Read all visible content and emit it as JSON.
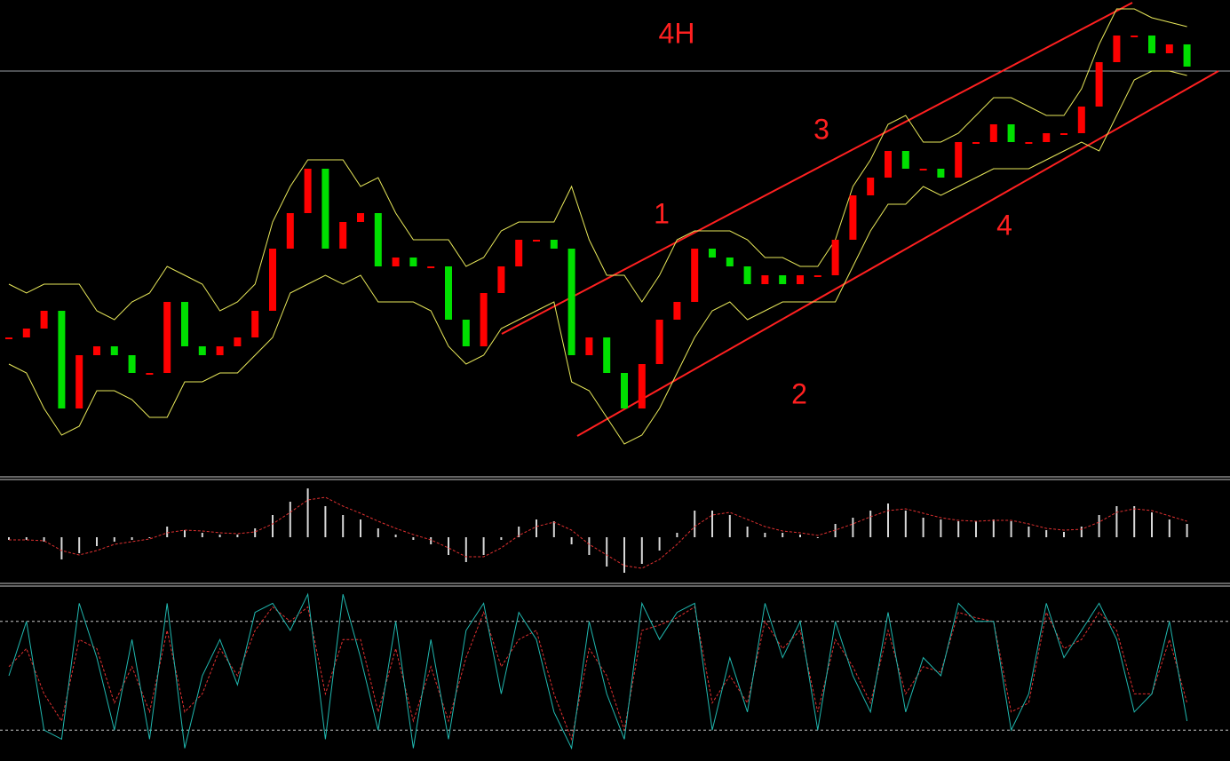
{
  "chart_data": [
    {
      "type": "candlestick",
      "title": "4H",
      "annotations": [
        "1",
        "2",
        "3",
        "4"
      ],
      "ylim": [
        0,
        535
      ],
      "up_color": "#ff0000",
      "down_color": "#00e000",
      "band_color": "#e8e85a",
      "channel_color": "#ff2020",
      "values": [
        155,
        165,
        185,
        75,
        135,
        145,
        135,
        115,
        115,
        195,
        145,
        135,
        145,
        155,
        185,
        255,
        295,
        345,
        255,
        285,
        295,
        235,
        245,
        235,
        235,
        175,
        145,
        205,
        235,
        265,
        265,
        255,
        135,
        155,
        115,
        75,
        125,
        175,
        195,
        255,
        245,
        235,
        215,
        225,
        215,
        225,
        225,
        265,
        315,
        335,
        365,
        345,
        345,
        335,
        375,
        375,
        395,
        375,
        375,
        385,
        385,
        415,
        465,
        495,
        495,
        475,
        485,
        460
      ],
      "upper_band": [
        215,
        205,
        215,
        215,
        215,
        185,
        175,
        195,
        205,
        235,
        225,
        215,
        185,
        195,
        215,
        285,
        325,
        355,
        355,
        355,
        325,
        335,
        295,
        265,
        265,
        265,
        235,
        245,
        275,
        285,
        285,
        285,
        325,
        265,
        225,
        225,
        195,
        225,
        265,
        275,
        275,
        275,
        265,
        245,
        245,
        235,
        235,
        265,
        325,
        355,
        395,
        405,
        375,
        375,
        385,
        405,
        425,
        425,
        415,
        405,
        405,
        435,
        485,
        525,
        525,
        515,
        510,
        505
      ],
      "lower_band": [
        125,
        115,
        75,
        45,
        55,
        95,
        95,
        85,
        65,
        65,
        105,
        105,
        115,
        115,
        135,
        155,
        205,
        215,
        225,
        215,
        225,
        195,
        195,
        195,
        185,
        145,
        125,
        135,
        165,
        175,
        185,
        195,
        105,
        95,
        65,
        35,
        45,
        75,
        115,
        155,
        185,
        195,
        175,
        185,
        195,
        195,
        195,
        195,
        235,
        275,
        305,
        305,
        325,
        315,
        325,
        335,
        345,
        345,
        345,
        355,
        365,
        375,
        365,
        405,
        445,
        455,
        455,
        450
      ]
    },
    {
      "type": "macd",
      "ylim": [
        -50,
        65
      ],
      "color": "#d8d8d8",
      "signal_color": "#e03030",
      "values": [
        -3,
        -3,
        -5,
        -25,
        -18,
        -10,
        -5,
        -3,
        0,
        12,
        8,
        5,
        3,
        3,
        10,
        25,
        40,
        55,
        35,
        25,
        20,
        10,
        3,
        -3,
        -8,
        -20,
        -28,
        -20,
        -3,
        12,
        20,
        18,
        -8,
        -20,
        -33,
        -40,
        -30,
        -15,
        5,
        30,
        30,
        25,
        12,
        5,
        5,
        3,
        0,
        15,
        22,
        30,
        38,
        30,
        22,
        20,
        18,
        18,
        20,
        18,
        12,
        8,
        6,
        12,
        25,
        35,
        35,
        28,
        20,
        15
      ],
      "signal": [
        -3,
        -3,
        -4,
        -15,
        -20,
        -15,
        -8,
        -5,
        -2,
        5,
        8,
        7,
        5,
        4,
        6,
        15,
        28,
        42,
        45,
        35,
        27,
        18,
        10,
        3,
        -3,
        -12,
        -22,
        -22,
        -12,
        2,
        12,
        17,
        8,
        -8,
        -20,
        -32,
        -35,
        -25,
        -8,
        12,
        25,
        28,
        20,
        12,
        7,
        5,
        2,
        8,
        15,
        23,
        30,
        32,
        27,
        22,
        19,
        18,
        19,
        19,
        15,
        10,
        8,
        9,
        17,
        28,
        32,
        30,
        24,
        18
      ]
    },
    {
      "type": "stochastic",
      "ylim": [
        0,
        100
      ],
      "levels": [
        20,
        80
      ],
      "color": "#20b8b0",
      "signal_color": "#e03030",
      "values": [
        50,
        80,
        20,
        15,
        90,
        60,
        20,
        70,
        15,
        90,
        10,
        50,
        70,
        45,
        85,
        90,
        75,
        95,
        15,
        95,
        60,
        20,
        80,
        10,
        70,
        15,
        75,
        90,
        40,
        85,
        70,
        30,
        10,
        80,
        40,
        15,
        90,
        70,
        85,
        90,
        20,
        60,
        30,
        90,
        60,
        80,
        20,
        80,
        50,
        30,
        85,
        30,
        60,
        50,
        90,
        80,
        80,
        20,
        40,
        90,
        60,
        75,
        90,
        70,
        30,
        40,
        80,
        25
      ],
      "signal": [
        55,
        65,
        40,
        25,
        70,
        65,
        35,
        55,
        30,
        75,
        30,
        40,
        65,
        50,
        75,
        88,
        80,
        88,
        40,
        70,
        70,
        30,
        65,
        25,
        55,
        25,
        60,
        85,
        55,
        70,
        75,
        40,
        15,
        65,
        50,
        20,
        75,
        78,
        82,
        88,
        35,
        50,
        35,
        80,
        65,
        75,
        30,
        70,
        55,
        35,
        75,
        40,
        55,
        52,
        85,
        82,
        80,
        30,
        35,
        85,
        65,
        70,
        85,
        75,
        40,
        40,
        70,
        35
      ]
    }
  ]
}
